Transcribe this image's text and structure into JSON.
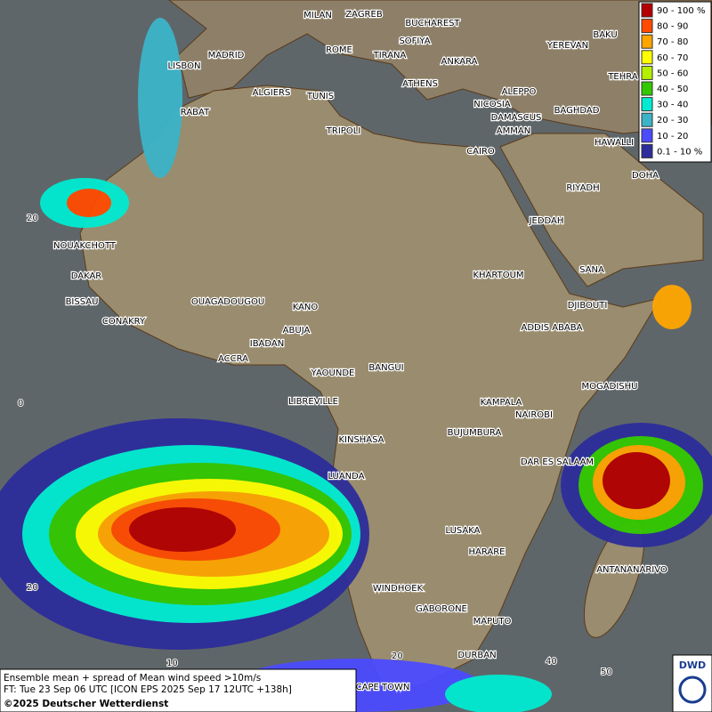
{
  "legend": {
    "items": [
      {
        "label": "90 - 100 %",
        "color": "#b40000"
      },
      {
        "label": "80 - 90",
        "color": "#ff4b00"
      },
      {
        "label": "70 - 80",
        "color": "#ffa500"
      },
      {
        "label": "60 - 70",
        "color": "#ffff00"
      },
      {
        "label": "50 - 60",
        "color": "#b4f000"
      },
      {
        "label": "40 - 50",
        "color": "#32c800"
      },
      {
        "label": "30 - 40",
        "color": "#00ebd2"
      },
      {
        "label": "20 - 30",
        "color": "#3cb4c8"
      },
      {
        "label": "10 - 20",
        "color": "#4b4bff"
      },
      {
        "label": "0.1 - 10 %",
        "color": "#2d2d9b"
      }
    ]
  },
  "cities": [
    "MILAN",
    "ZAGREB",
    "BUCHAREST",
    "MADRID",
    "ROME",
    "SOFIYA",
    "BAKU",
    "YEREVAN",
    "LISBON",
    "TIRANA",
    "ANKARA",
    "TEHRA",
    "ALGIERS",
    "TUNIS",
    "ATHENS",
    "ALEPPO",
    "RABAT",
    "NICOSIA",
    "BAGHDAD",
    "DAMASCUS",
    "AMMAN",
    "TRIPOLI",
    "CAIRO",
    "HAWALLI",
    "DOHA",
    "RIYADH",
    "JEDDAH",
    "NOUAKCHOTT",
    "KHARTOUM",
    "SANA",
    "DAKAR",
    "BISSAU",
    "DJIBOUTI",
    "OUAGADOUGOU",
    "KANO",
    "CONAKRY",
    "ABUJA",
    "ADDIS ABABA",
    "IBADAN",
    "ACCRA",
    "YAOUNDE",
    "BANGUI",
    "MOGADISHU",
    "LIBREVILLE",
    "KAMPALA",
    "NAIROBI",
    "KINSHASA",
    "BUJUMBURA",
    "DAR ES SALAAM",
    "LUANDA",
    "LUSAKA",
    "HARARE",
    "ANTANANARIVO",
    "WINDHOEK",
    "GABORONE",
    "MAPUTO",
    "DURBAN",
    "CAPE TOWN"
  ],
  "grid_labels": {
    "lat": [
      "20",
      "0",
      "20"
    ],
    "lon": [
      "10",
      "20",
      "40",
      "50"
    ]
  },
  "caption": {
    "line1": "Ensemble mean + spread of Mean wind speed >10m/s",
    "line2": "FT: Tue 23 Sep 06 UTC [ICON EPS 2025 Sep 17 12UTC +138h]",
    "copyright": "©2025 Deutscher Wetterdienst"
  },
  "logo": "DWD"
}
